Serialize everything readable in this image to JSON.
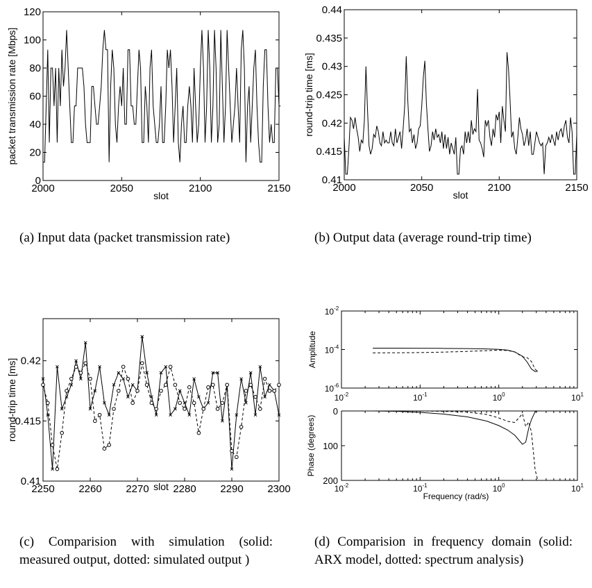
{
  "captions": {
    "a": "(a) Input data (packet transmission rate)",
    "b": "(b) Output data (average round-trip time)",
    "c": "(c) Comparision with simulation (solid: measured output, dotted: simulated output )",
    "d": "(d) Comparision in frequency domain (solid: ARX model, dotted: spectrum analysis)"
  },
  "chart_data": [
    {
      "id": "a",
      "type": "line",
      "xlabel": "slot",
      "ylabel": "packet transmission rate [Mbps]",
      "xlim": [
        2000,
        2150
      ],
      "ylim": [
        0,
        120
      ],
      "xticks": [
        2000,
        2050,
        2100,
        2150
      ],
      "yticks": [
        0,
        20,
        40,
        60,
        80,
        100,
        120
      ],
      "x_start": 2000,
      "x_step": 1,
      "values": [
        13,
        13,
        53,
        93,
        27,
        80,
        80,
        53,
        80,
        27,
        80,
        53,
        93,
        67,
        80,
        107,
        80,
        53,
        27,
        27,
        53,
        53,
        80,
        80,
        80,
        80,
        67,
        40,
        27,
        27,
        27,
        67,
        67,
        53,
        40,
        40,
        53,
        67,
        93,
        107,
        93,
        93,
        13,
        67,
        93,
        80,
        40,
        27,
        53,
        67,
        53,
        80,
        40,
        40,
        93,
        93,
        53,
        53,
        40,
        40,
        67,
        93,
        80,
        27,
        27,
        67,
        53,
        27,
        80,
        93,
        53,
        40,
        27,
        27,
        40,
        67,
        27,
        27,
        53,
        93,
        80,
        93,
        67,
        27,
        53,
        80,
        27,
        13,
        40,
        53,
        27,
        27,
        53,
        67,
        53,
        27,
        80,
        53,
        27,
        40,
        80,
        107,
        80,
        27,
        53,
        107,
        80,
        27,
        53,
        107,
        80,
        27,
        40,
        107,
        67,
        27,
        53,
        107,
        80,
        53,
        27,
        40,
        53,
        80,
        53,
        27,
        93,
        107,
        80,
        13,
        53,
        67,
        27,
        53,
        80,
        93,
        53,
        27,
        13,
        13,
        67,
        93,
        93,
        53,
        27,
        40,
        27,
        27,
        80,
        80,
        53,
        53
      ],
      "grid": false
    },
    {
      "id": "b",
      "type": "line",
      "xlabel": "slot",
      "ylabel": "round-trip time [ms]",
      "xlim": [
        2000,
        2150
      ],
      "ylim": [
        0.41,
        0.44
      ],
      "xticks": [
        2000,
        2050,
        2100,
        2150
      ],
      "yticks": [
        0.41,
        0.415,
        0.42,
        0.425,
        0.43,
        0.435,
        0.44
      ],
      "x_start": 2000,
      "x_step": 1,
      "values": [
        0.4175,
        0.411,
        0.411,
        0.4155,
        0.421,
        0.4205,
        0.419,
        0.421,
        0.419,
        0.4175,
        0.415,
        0.417,
        0.4165,
        0.4205,
        0.43,
        0.4225,
        0.416,
        0.4145,
        0.4155,
        0.418,
        0.4175,
        0.4195,
        0.4185,
        0.4165,
        0.416,
        0.4185,
        0.4165,
        0.417,
        0.4165,
        0.4165,
        0.4185,
        0.4165,
        0.416,
        0.419,
        0.4165,
        0.4175,
        0.4185,
        0.4155,
        0.419,
        0.423,
        0.4318,
        0.424,
        0.4185,
        0.419,
        0.4165,
        0.418,
        0.4155,
        0.4165,
        0.419,
        0.4195,
        0.423,
        0.428,
        0.431,
        0.4235,
        0.419,
        0.415,
        0.416,
        0.4185,
        0.417,
        0.419,
        0.4175,
        0.418,
        0.4165,
        0.4185,
        0.4155,
        0.418,
        0.4155,
        0.4175,
        0.4145,
        0.4165,
        0.4155,
        0.4145,
        0.4175,
        0.411,
        0.411,
        0.4155,
        0.416,
        0.4145,
        0.4185,
        0.4165,
        0.4185,
        0.4165,
        0.4205,
        0.418,
        0.419,
        0.4185,
        0.426,
        0.417,
        0.4165,
        0.4155,
        0.414,
        0.4205,
        0.4195,
        0.4205,
        0.4175,
        0.416,
        0.419,
        0.4175,
        0.4215,
        0.4205,
        0.422,
        0.4165,
        0.423,
        0.4205,
        0.4185,
        0.4325,
        0.4295,
        0.424,
        0.4175,
        0.4185,
        0.4155,
        0.4145,
        0.4175,
        0.421,
        0.419,
        0.418,
        0.416,
        0.417,
        0.419,
        0.416,
        0.4185,
        0.4145,
        0.4145,
        0.4165,
        0.4185,
        0.4175,
        0.4165,
        0.416,
        0.4165,
        0.411,
        0.416,
        0.4165,
        0.4175,
        0.4165,
        0.418,
        0.417,
        0.416,
        0.4185,
        0.417,
        0.4185,
        0.419,
        0.4175,
        0.4195,
        0.4205,
        0.4175,
        0.4165,
        0.421,
        0.4185,
        0.411,
        0.411,
        0.418
      ],
      "grid": false
    },
    {
      "id": "c",
      "type": "line",
      "xlabel": "slot",
      "ylabel": "round-trip time [ms]",
      "xlim": [
        2250,
        2300
      ],
      "ylim": [
        0.41,
        0.4235
      ],
      "xticks": [
        2250,
        2260,
        2270,
        2280,
        2290,
        2300
      ],
      "yticks": [
        0.41,
        0.415,
        0.42
      ],
      "x_start": 2250,
      "x_step": 1,
      "series": [
        {
          "name": "measured output",
          "style": "solid",
          "marker": "x",
          "values": [
            0.4185,
            0.4155,
            0.411,
            0.4195,
            0.416,
            0.417,
            0.418,
            0.42,
            0.4185,
            0.4215,
            0.416,
            0.4175,
            0.4195,
            0.4165,
            0.4155,
            0.418,
            0.419,
            0.4185,
            0.417,
            0.418,
            0.4175,
            0.422,
            0.419,
            0.417,
            0.4155,
            0.419,
            0.4195,
            0.4155,
            0.416,
            0.4175,
            0.4165,
            0.4155,
            0.4185,
            0.417,
            0.416,
            0.4165,
            0.419,
            0.419,
            0.415,
            0.418,
            0.411,
            0.4155,
            0.4185,
            0.4165,
            0.419,
            0.4155,
            0.4195,
            0.417,
            0.418,
            0.4175,
            0.4155
          ]
        },
        {
          "name": "simulated output",
          "style": "dashed",
          "marker": "o",
          "values": [
            0.418,
            0.4165,
            0.413,
            0.411,
            0.414,
            0.4175,
            0.4185,
            0.4195,
            0.419,
            0.4198,
            0.4185,
            0.415,
            0.4155,
            0.4127,
            0.413,
            0.416,
            0.4175,
            0.4195,
            0.4185,
            0.4165,
            0.4175,
            0.4198,
            0.418,
            0.4165,
            0.416,
            0.4175,
            0.418,
            0.4195,
            0.418,
            0.4165,
            0.416,
            0.4178,
            0.4165,
            0.414,
            0.416,
            0.4178,
            0.418,
            0.416,
            0.4165,
            0.418,
            0.4125,
            0.412,
            0.4145,
            0.4175,
            0.418,
            0.417,
            0.416,
            0.4185,
            0.4175,
            0.4175,
            0.418
          ]
        }
      ],
      "grid": false
    },
    {
      "id": "d-amplitude",
      "type": "line",
      "xscale": "log",
      "yscale": "log",
      "xlabel": "",
      "ylabel": "Amplitude",
      "xlim": [
        0.01,
        10
      ],
      "ylim": [
        1e-06,
        0.01
      ],
      "xtick_labels": [
        "10",
        "10",
        "10",
        "10"
      ],
      "xtick_exponents": [
        "-2",
        "-1",
        "0",
        "1"
      ],
      "xtick_values": [
        0.01,
        0.1,
        1,
        10
      ],
      "ytick_labels": [
        "10",
        "10",
        "10"
      ],
      "ytick_exponents": [
        "-6",
        "-4",
        "-2"
      ],
      "ytick_values": [
        1e-06,
        0.0001,
        0.01
      ],
      "x": [
        0.025,
        0.05,
        0.1,
        0.2,
        0.4,
        0.7,
        1.0,
        1.3,
        1.6,
        2.0,
        2.3,
        2.6,
        2.9,
        3.14
      ],
      "series": [
        {
          "name": "ARX model",
          "style": "solid",
          "values": [
            0.000118,
            0.000118,
            0.000117,
            0.000115,
            0.000112,
            0.000108,
            0.000102,
            9.3e-05,
            7.5e-05,
            4.5e-05,
            2.2e-05,
            9.8e-06,
            7.2e-06,
            7.5e-06
          ]
        },
        {
          "name": "spectrum analysis",
          "style": "dashed",
          "values": [
            6.75e-05,
            6.8e-05,
            6.95e-05,
            7.35e-05,
            8e-05,
            8.75e-05,
            9.3e-05,
            8.9e-05,
            7.5e-05,
            4.2e-05,
            3.8e-05,
            2.4e-05,
            9.5e-06,
            7.2e-06
          ]
        }
      ],
      "grid": false
    },
    {
      "id": "d-phase",
      "type": "line",
      "xscale": "log",
      "xlabel": "Frequency (rad/s)",
      "ylabel": "Phase (degrees)",
      "xlim": [
        0.01,
        10
      ],
      "ylim": [
        200,
        0
      ],
      "xtick_labels": [
        "10",
        "10",
        "10",
        "10"
      ],
      "xtick_exponents": [
        "-2",
        "-1",
        "0",
        "1"
      ],
      "xtick_values": [
        0.01,
        0.1,
        1,
        10
      ],
      "yticks": [
        0,
        100,
        200
      ],
      "x": [
        0.025,
        0.05,
        0.1,
        0.2,
        0.4,
        0.7,
        1.0,
        1.3,
        1.6,
        2.0,
        2.2,
        2.4,
        2.6,
        2.9,
        3.14
      ],
      "series": [
        {
          "name": "ARX model",
          "style": "solid",
          "values": [
            0,
            1,
            4,
            9,
            17,
            29,
            42,
            55,
            70,
            96,
            90,
            50,
            25,
            2,
            0
          ]
        },
        {
          "name": "spectrum analysis",
          "style": "dashed",
          "values": [
            0,
            0,
            0,
            1,
            3,
            10,
            20,
            30,
            33,
            8,
            45,
            32,
            60,
            170,
            200
          ]
        }
      ],
      "grid": false
    }
  ]
}
